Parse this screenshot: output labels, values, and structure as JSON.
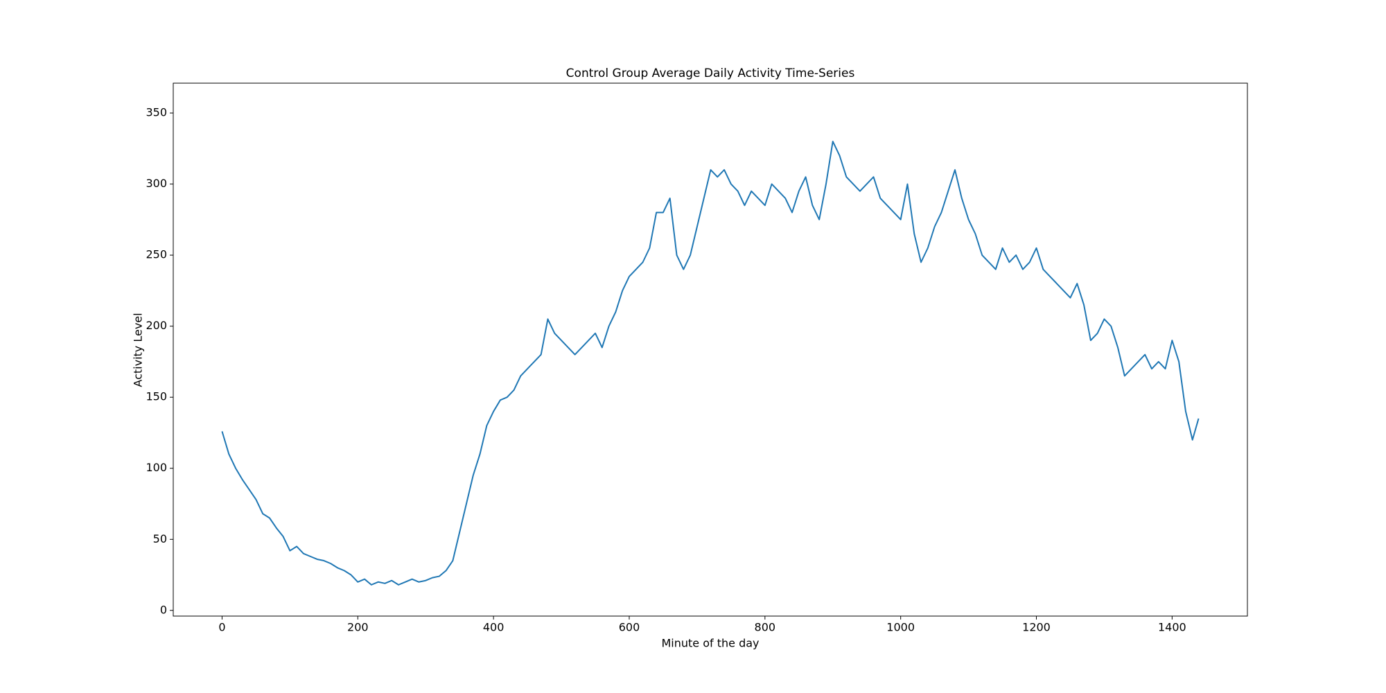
{
  "chart_data": {
    "type": "line",
    "title": "Control Group Average Daily Activity Time-Series",
    "xlabel": "Minute of the day",
    "ylabel": "Activity Level",
    "color": "#1f77b4",
    "x": [
      0,
      10,
      20,
      30,
      40,
      50,
      60,
      70,
      80,
      90,
      100,
      110,
      120,
      130,
      140,
      150,
      160,
      170,
      180,
      190,
      200,
      210,
      220,
      230,
      240,
      250,
      260,
      270,
      280,
      290,
      300,
      310,
      320,
      330,
      340,
      350,
      360,
      370,
      380,
      390,
      400,
      410,
      420,
      430,
      440,
      450,
      460,
      470,
      480,
      490,
      500,
      510,
      520,
      530,
      540,
      550,
      560,
      570,
      580,
      590,
      600,
      610,
      620,
      630,
      640,
      650,
      660,
      670,
      680,
      690,
      700,
      710,
      720,
      730,
      740,
      750,
      760,
      770,
      780,
      790,
      800,
      810,
      820,
      830,
      840,
      850,
      860,
      870,
      880,
      890,
      900,
      910,
      920,
      930,
      940,
      950,
      960,
      970,
      980,
      990,
      1000,
      1010,
      1020,
      1030,
      1040,
      1050,
      1060,
      1070,
      1080,
      1090,
      1100,
      1110,
      1120,
      1130,
      1140,
      1150,
      1160,
      1170,
      1180,
      1190,
      1200,
      1210,
      1220,
      1230,
      1240,
      1250,
      1260,
      1270,
      1280,
      1290,
      1300,
      1310,
      1320,
      1330,
      1340,
      1350,
      1360,
      1370,
      1380,
      1390,
      1400,
      1410,
      1420,
      1430,
      1439
    ],
    "values": [
      126,
      110,
      100,
      92,
      85,
      78,
      68,
      65,
      58,
      52,
      42,
      45,
      40,
      38,
      36,
      35,
      33,
      30,
      28,
      25,
      20,
      22,
      18,
      20,
      19,
      21,
      18,
      20,
      22,
      20,
      21,
      23,
      24,
      28,
      35,
      55,
      75,
      95,
      110,
      130,
      140,
      148,
      150,
      155,
      165,
      170,
      175,
      180,
      205,
      195,
      190,
      185,
      180,
      185,
      190,
      195,
      185,
      200,
      210,
      225,
      235,
      240,
      245,
      255,
      280,
      280,
      290,
      250,
      240,
      250,
      270,
      290,
      310,
      305,
      310,
      300,
      295,
      285,
      295,
      290,
      285,
      300,
      295,
      290,
      280,
      295,
      305,
      285,
      275,
      300,
      330,
      320,
      305,
      300,
      295,
      300,
      305,
      290,
      285,
      280,
      275,
      300,
      265,
      245,
      255,
      270,
      280,
      295,
      310,
      290,
      275,
      265,
      250,
      245,
      240,
      255,
      245,
      250,
      240,
      245,
      255,
      240,
      235,
      230,
      225,
      220,
      230,
      215,
      190,
      195,
      205,
      200,
      185,
      165,
      170,
      175,
      180,
      170,
      175,
      170,
      190,
      175,
      140,
      120,
      135
    ],
    "xlim": [
      -71.95,
      1510.95
    ],
    "ylim": [
      -4,
      371
    ],
    "xticks": [
      0,
      200,
      400,
      600,
      800,
      1000,
      1200,
      1400
    ],
    "yticks": [
      0,
      50,
      100,
      150,
      200,
      250,
      300,
      350
    ]
  }
}
